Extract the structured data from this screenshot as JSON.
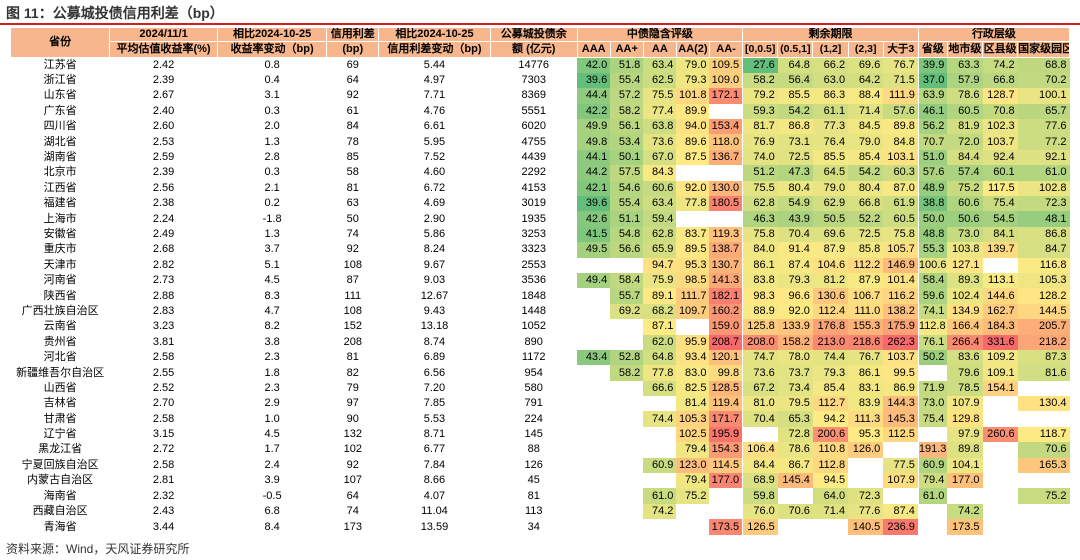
{
  "title": "图 11：公募城投债信用利差（bp）",
  "source": "资料来源：Wind，天风证券研究所",
  "header": {
    "province": "省份",
    "date": "2024/11/1",
    "yield_label": "平均估值收益率(%)",
    "compare1": "相比2024-10-25",
    "yield_change": "收益率变动（bp)",
    "spread": "信用利差",
    "spread_unit": "(bp)",
    "compare2": "相比2024-10-25",
    "spread_change": "信用利差变动（bp)",
    "balance1": "公募城投债余",
    "balance2": "额 (亿元)",
    "group_rating": "中债隐含评级",
    "group_term": "剩余期限",
    "group_admin": "行政层级",
    "sub": [
      "AAA",
      "AA+",
      "AA",
      "AA(2)",
      "AA-",
      "[0,0.5]",
      "(0.5,1]",
      "(1,2]",
      "(2,3]",
      "大于3",
      "省级",
      "地市级",
      "区县级",
      "国家级园区"
    ]
  },
  "colors": {
    "title_rule": "#cf1f1f",
    "header_bg": "#f7b68c",
    "header_text": "#000000"
  },
  "rows": [
    {
      "p": "江苏省",
      "y": "2.42",
      "yc": "0.8",
      "s": "69",
      "sc": "5.44",
      "b": "14776",
      "v": [
        "42.0",
        "51.8",
        "63.4",
        "79.0",
        "109.5",
        "27.6",
        "64.8",
        "66.2",
        "69.6",
        "76.7",
        "39.9",
        "63.3",
        "74.2",
        "68.8"
      ]
    },
    {
      "p": "浙江省",
      "y": "2.39",
      "yc": "0.4",
      "s": "64",
      "sc": "4.97",
      "b": "7303",
      "v": [
        "39.6",
        "55.4",
        "62.5",
        "79.3",
        "109.0",
        "58.2",
        "56.4",
        "63.0",
        "64.2",
        "71.5",
        "37.0",
        "57.9",
        "66.8",
        "70.2"
      ]
    },
    {
      "p": "山东省",
      "y": "2.67",
      "yc": "3.1",
      "s": "92",
      "sc": "7.71",
      "b": "8369",
      "v": [
        "44.4",
        "57.2",
        "75.5",
        "101.8",
        "172.1",
        "79.2",
        "85.5",
        "86.3",
        "88.4",
        "111.9",
        "63.9",
        "78.6",
        "128.7",
        "100.1"
      ]
    },
    {
      "p": "广东省",
      "y": "2.40",
      "yc": "0.3",
      "s": "61",
      "sc": "4.76",
      "b": "5551",
      "v": [
        "42.2",
        "58.2",
        "77.4",
        "89.9",
        "",
        "59.3",
        "54.2",
        "61.1",
        "71.4",
        "57.6",
        "46.1",
        "60.5",
        "70.8",
        "65.7"
      ]
    },
    {
      "p": "四川省",
      "y": "2.60",
      "yc": "2.0",
      "s": "84",
      "sc": "6.61",
      "b": "6020",
      "v": [
        "49.9",
        "56.1",
        "63.8",
        "94.0",
        "153.4",
        "81.7",
        "86.8",
        "77.3",
        "84.5",
        "89.8",
        "56.2",
        "81.9",
        "102.3",
        "77.6"
      ]
    },
    {
      "p": "湖北省",
      "y": "2.53",
      "yc": "1.3",
      "s": "78",
      "sc": "5.95",
      "b": "4755",
      "v": [
        "49.8",
        "53.4",
        "73.6",
        "89.6",
        "118.0",
        "76.9",
        "73.1",
        "76.4",
        "79.0",
        "84.8",
        "70.7",
        "72.0",
        "103.7",
        "77.2"
      ]
    },
    {
      "p": "湖南省",
      "y": "2.59",
      "yc": "2.8",
      "s": "85",
      "sc": "7.52",
      "b": "4439",
      "v": [
        "44.1",
        "50.1",
        "67.0",
        "87.5",
        "136.7",
        "74.0",
        "72.5",
        "85.5",
        "85.4",
        "103.1",
        "51.0",
        "84.4",
        "92.4",
        "92.1"
      ]
    },
    {
      "p": "北京市",
      "y": "2.39",
      "yc": "0.3",
      "s": "58",
      "sc": "4.60",
      "b": "2292",
      "v": [
        "44.2",
        "57.5",
        "84.3",
        "",
        "",
        "51.2",
        "47.3",
        "64.5",
        "54.2",
        "60.3",
        "57.6",
        "57.4",
        "60.1",
        "61.0"
      ]
    },
    {
      "p": "江西省",
      "y": "2.56",
      "yc": "2.1",
      "s": "81",
      "sc": "6.72",
      "b": "4153",
      "v": [
        "42.1",
        "54.6",
        "60.6",
        "92.0",
        "130.0",
        "75.5",
        "80.4",
        "79.0",
        "80.4",
        "87.0",
        "48.9",
        "75.2",
        "117.5",
        "102.8"
      ]
    },
    {
      "p": "福建省",
      "y": "2.38",
      "yc": "0.2",
      "s": "63",
      "sc": "4.69",
      "b": "3019",
      "v": [
        "39.6",
        "55.4",
        "63.4",
        "77.8",
        "180.5",
        "62.8",
        "54.9",
        "62.9",
        "66.8",
        "61.9",
        "38.8",
        "60.6",
        "75.4",
        "72.3"
      ]
    },
    {
      "p": "上海市",
      "y": "2.24",
      "yc": "-1.8",
      "s": "50",
      "sc": "2.90",
      "b": "1935",
      "v": [
        "42.6",
        "51.1",
        "59.4",
        "",
        "",
        "46.3",
        "43.9",
        "50.5",
        "52.2",
        "60.5",
        "50.0",
        "50.6",
        "54.5",
        "48.1"
      ]
    },
    {
      "p": "安徽省",
      "y": "2.49",
      "yc": "1.3",
      "s": "74",
      "sc": "5.86",
      "b": "3253",
      "v": [
        "41.5",
        "54.8",
        "62.8",
        "83.7",
        "119.3",
        "75.8",
        "70.4",
        "69.6",
        "72.5",
        "75.8",
        "48.8",
        "73.0",
        "84.1",
        "86.8"
      ]
    },
    {
      "p": "重庆市",
      "y": "2.68",
      "yc": "3.7",
      "s": "92",
      "sc": "8.24",
      "b": "3323",
      "v": [
        "49.5",
        "56.6",
        "65.9",
        "89.5",
        "138.7",
        "84.0",
        "91.4",
        "87.9",
        "85.8",
        "105.7",
        "55.3",
        "103.8",
        "139.7",
        "84.7"
      ]
    },
    {
      "p": "天津市",
      "y": "2.82",
      "yc": "5.1",
      "s": "108",
      "sc": "9.67",
      "b": "2553",
      "v": [
        "",
        "",
        "94.7",
        "95.3",
        "130.7",
        "86.1",
        "87.4",
        "104.6",
        "112.2",
        "146.9",
        "100.6",
        "127.1",
        "",
        "116.8"
      ]
    },
    {
      "p": "河南省",
      "y": "2.73",
      "yc": "4.5",
      "s": "87",
      "sc": "9.03",
      "b": "3536",
      "v": [
        "49.4",
        "58.4",
        "75.9",
        "98.5",
        "141.3",
        "83.8",
        "79.3",
        "81.2",
        "87.9",
        "101.4",
        "58.4",
        "89.3",
        "113.1",
        "105.3"
      ]
    },
    {
      "p": "陕西省",
      "y": "2.88",
      "yc": "8.3",
      "s": "111",
      "sc": "12.67",
      "b": "1848",
      "v": [
        "",
        "55.7",
        "89.1",
        "111.7",
        "182.1",
        "98.3",
        "96.6",
        "130.6",
        "106.7",
        "116.2",
        "59.6",
        "102.4",
        "144.6",
        "128.2"
      ]
    },
    {
      "p": "广西壮族自治区",
      "y": "2.83",
      "yc": "4.7",
      "s": "108",
      "sc": "9.43",
      "b": "1448",
      "v": [
        "",
        "69.2",
        "68.2",
        "109.7",
        "160.2",
        "88.9",
        "92.0",
        "112.4",
        "111.0",
        "138.2",
        "74.1",
        "134.9",
        "162.7",
        "144.5"
      ]
    },
    {
      "p": "云南省",
      "y": "3.23",
      "yc": "8.2",
      "s": "152",
      "sc": "13.18",
      "b": "1052",
      "v": [
        "",
        "",
        "87.1",
        "",
        "159.0",
        "125.8",
        "133.9",
        "176.8",
        "155.3",
        "175.9",
        "112.8",
        "166.4",
        "184.3",
        "205.7"
      ]
    },
    {
      "p": "贵州省",
      "y": "3.81",
      "yc": "3.8",
      "s": "208",
      "sc": "8.74",
      "b": "890",
      "v": [
        "",
        "",
        "62.0",
        "95.9",
        "208.7",
        "208.0",
        "158.2",
        "213.0",
        "218.6",
        "262.3",
        "76.1",
        "266.4",
        "331.6",
        "218.2"
      ]
    },
    {
      "p": "河北省",
      "y": "2.58",
      "yc": "2.3",
      "s": "81",
      "sc": "6.89",
      "b": "1172",
      "v": [
        "43.4",
        "52.8",
        "64.8",
        "93.4",
        "120.1",
        "74.7",
        "78.0",
        "74.4",
        "76.7",
        "103.7",
        "50.2",
        "83.6",
        "109.2",
        "87.3"
      ]
    },
    {
      "p": "新疆维吾尔自治区",
      "y": "2.55",
      "yc": "1.8",
      "s": "82",
      "sc": "6.56",
      "b": "954",
      "v": [
        "",
        "58.2",
        "77.8",
        "83.0",
        "99.8",
        "73.6",
        "73.7",
        "79.3",
        "86.1",
        "99.5",
        "",
        "79.6",
        "109.1",
        "81.6"
      ]
    },
    {
      "p": "山西省",
      "y": "2.52",
      "yc": "2.3",
      "s": "79",
      "sc": "7.20",
      "b": "580",
      "v": [
        "",
        "",
        "66.6",
        "82.5",
        "128.5",
        "67.2",
        "73.4",
        "85.4",
        "83.1",
        "86.9",
        "71.9",
        "78.5",
        "154.1",
        ""
      ]
    },
    {
      "p": "吉林省",
      "y": "2.70",
      "yc": "2.9",
      "s": "97",
      "sc": "7.85",
      "b": "791",
      "v": [
        "",
        "",
        "",
        "81.4",
        "119.4",
        "81.0",
        "79.5",
        "112.7",
        "83.9",
        "144.3",
        "73.0",
        "107.9",
        "",
        "130.4"
      ]
    },
    {
      "p": "甘肃省",
      "y": "2.58",
      "yc": "1.0",
      "s": "90",
      "sc": "5.53",
      "b": "224",
      "v": [
        "",
        "",
        "74.4",
        "105.3",
        "171.7",
        "70.4",
        "65.3",
        "94.2",
        "111.3",
        "145.3",
        "75.4",
        "129.8",
        "",
        ""
      ]
    },
    {
      "p": "辽宁省",
      "y": "3.15",
      "yc": "4.5",
      "s": "132",
      "sc": "8.71",
      "b": "145",
      "v": [
        "",
        "",
        "",
        "102.5",
        "195.9",
        "",
        "72.8",
        "200.6",
        "95.3",
        "112.5",
        "",
        "97.9",
        "260.6",
        "118.7"
      ]
    },
    {
      "p": "黑龙江省",
      "y": "2.72",
      "yc": "1.7",
      "s": "102",
      "sc": "6.77",
      "b": "88",
      "v": [
        "",
        "",
        "",
        "79.4",
        "154.3",
        "106.4",
        "78.6",
        "110.8",
        "126.0",
        "",
        "191.3",
        "89.8",
        "",
        "70.6"
      ]
    },
    {
      "p": "宁夏回族自治区",
      "y": "2.58",
      "yc": "2.4",
      "s": "92",
      "sc": "7.84",
      "b": "126",
      "v": [
        "",
        "",
        "60.9",
        "123.0",
        "114.5",
        "84.4",
        "86.7",
        "112.8",
        "",
        "77.5",
        "60.9",
        "104.1",
        "",
        "165.3"
      ]
    },
    {
      "p": "内蒙古自治区",
      "y": "2.81",
      "yc": "3.9",
      "s": "107",
      "sc": "8.66",
      "b": "45",
      "v": [
        "",
        "",
        "",
        "79.4",
        "177.0",
        "68.9",
        "145.4",
        "94.5",
        "",
        "107.9",
        "79.4",
        "177.0",
        "",
        ""
      ]
    },
    {
      "p": "海南省",
      "y": "2.32",
      "yc": "-0.5",
      "s": "64",
      "sc": "4.07",
      "b": "81",
      "v": [
        "",
        "",
        "61.0",
        "75.2",
        "",
        "59.8",
        "",
        "64.0",
        "72.3",
        "",
        "61.0",
        "",
        "",
        "75.2"
      ]
    },
    {
      "p": "西藏自治区",
      "y": "2.43",
      "yc": "6.8",
      "s": "74",
      "sc": "11.04",
      "b": "113",
      "v": [
        "",
        "",
        "74.2",
        "",
        "",
        "76.0",
        "70.6",
        "71.4",
        "77.6",
        "87.4",
        "",
        "74.2",
        "",
        ""
      ]
    },
    {
      "p": "青海省",
      "y": "3.44",
      "yc": "8.4",
      "s": "173",
      "sc": "13.59",
      "b": "34",
      "v": [
        "",
        "",
        "",
        "",
        "173.5",
        "126.5",
        "",
        "",
        "140.5",
        "236.9",
        "",
        "173.5",
        "",
        ""
      ]
    }
  ]
}
